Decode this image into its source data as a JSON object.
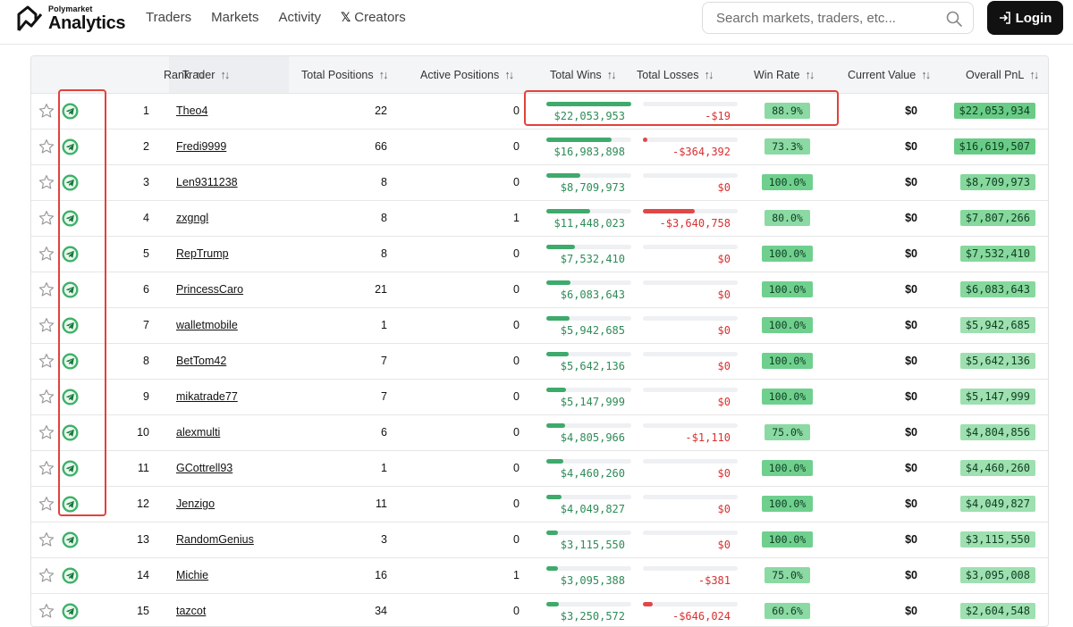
{
  "brand": {
    "small": "Polymarket",
    "big": "Analytics"
  },
  "nav": [
    {
      "label": "Traders"
    },
    {
      "label": "Markets"
    },
    {
      "label": "Activity"
    },
    {
      "label": "Creators",
      "icon": "x-icon"
    }
  ],
  "search": {
    "placeholder": "Search markets, traders, etc..."
  },
  "login": {
    "label": "Login"
  },
  "columns": {
    "rank": "Rank",
    "trader": "Trader",
    "total_positions": "Total Positions",
    "active_positions": "Active Positions",
    "total_wins": "Total Wins",
    "total_losses": "Total Losses",
    "win_rate": "Win Rate",
    "current_value": "Current Value",
    "overall_pnl": "Overall PnL"
  },
  "colors": {
    "gain": "#3eaa6b",
    "loss": "#e04848",
    "highlight": "#e2423b"
  },
  "rows": [
    {
      "rank": "1",
      "trader": "Theo4",
      "total": "22",
      "active": "0",
      "wins": "$22,053,953",
      "wins_frac": 1.0,
      "losses": "-$19",
      "loss_frac": 0.0,
      "rate": "88.9%",
      "value": "$0",
      "pnl": "$22,053,934"
    },
    {
      "rank": "2",
      "trader": "Fredi9999",
      "total": "66",
      "active": "0",
      "wins": "$16,983,898",
      "wins_frac": 0.77,
      "losses": "-$364,392",
      "loss_frac": 0.05,
      "rate": "73.3%",
      "value": "$0",
      "pnl": "$16,619,507"
    },
    {
      "rank": "3",
      "trader": "Len9311238",
      "total": "8",
      "active": "0",
      "wins": "$8,709,973",
      "wins_frac": 0.4,
      "losses": "$0",
      "loss_frac": 0.0,
      "rate": "100.0%",
      "value": "$0",
      "pnl": "$8,709,973"
    },
    {
      "rank": "4",
      "trader": "zxgngl",
      "total": "8",
      "active": "1",
      "wins": "$11,448,023",
      "wins_frac": 0.52,
      "losses": "-$3,640,758",
      "loss_frac": 0.55,
      "rate": "80.0%",
      "value": "$0",
      "pnl": "$7,807,266"
    },
    {
      "rank": "5",
      "trader": "RepTrump",
      "total": "8",
      "active": "0",
      "wins": "$7,532,410",
      "wins_frac": 0.34,
      "losses": "$0",
      "loss_frac": 0.0,
      "rate": "100.0%",
      "value": "$0",
      "pnl": "$7,532,410"
    },
    {
      "rank": "6",
      "trader": "PrincessCaro",
      "total": "21",
      "active": "0",
      "wins": "$6,083,643",
      "wins_frac": 0.28,
      "losses": "$0",
      "loss_frac": 0.0,
      "rate": "100.0%",
      "value": "$0",
      "pnl": "$6,083,643"
    },
    {
      "rank": "7",
      "trader": "walletmobile",
      "total": "1",
      "active": "0",
      "wins": "$5,942,685",
      "wins_frac": 0.27,
      "losses": "$0",
      "loss_frac": 0.0,
      "rate": "100.0%",
      "value": "$0",
      "pnl": "$5,942,685"
    },
    {
      "rank": "8",
      "trader": "BetTom42",
      "total": "7",
      "active": "0",
      "wins": "$5,642,136",
      "wins_frac": 0.26,
      "losses": "$0",
      "loss_frac": 0.0,
      "rate": "100.0%",
      "value": "$0",
      "pnl": "$5,642,136"
    },
    {
      "rank": "9",
      "trader": "mikatrade77",
      "total": "7",
      "active": "0",
      "wins": "$5,147,999",
      "wins_frac": 0.23,
      "losses": "$0",
      "loss_frac": 0.0,
      "rate": "100.0%",
      "value": "$0",
      "pnl": "$5,147,999"
    },
    {
      "rank": "10",
      "trader": "alexmulti",
      "total": "6",
      "active": "0",
      "wins": "$4,805,966",
      "wins_frac": 0.22,
      "losses": "-$1,110",
      "loss_frac": 0.0,
      "rate": "75.0%",
      "value": "$0",
      "pnl": "$4,804,856"
    },
    {
      "rank": "11",
      "trader": "GCottrell93",
      "total": "1",
      "active": "0",
      "wins": "$4,460,260",
      "wins_frac": 0.2,
      "losses": "$0",
      "loss_frac": 0.0,
      "rate": "100.0%",
      "value": "$0",
      "pnl": "$4,460,260"
    },
    {
      "rank": "12",
      "trader": "Jenzigo",
      "total": "11",
      "active": "0",
      "wins": "$4,049,827",
      "wins_frac": 0.18,
      "losses": "$0",
      "loss_frac": 0.0,
      "rate": "100.0%",
      "value": "$0",
      "pnl": "$4,049,827"
    },
    {
      "rank": "13",
      "trader": "RandomGenius",
      "total": "3",
      "active": "0",
      "wins": "$3,115,550",
      "wins_frac": 0.14,
      "losses": "$0",
      "loss_frac": 0.0,
      "rate": "100.0%",
      "value": "$0",
      "pnl": "$3,115,550"
    },
    {
      "rank": "14",
      "trader": "Michie",
      "total": "16",
      "active": "1",
      "wins": "$3,095,388",
      "wins_frac": 0.14,
      "losses": "-$381",
      "loss_frac": 0.0,
      "rate": "75.0%",
      "value": "$0",
      "pnl": "$3,095,008"
    },
    {
      "rank": "15",
      "trader": "tazcot",
      "total": "34",
      "active": "0",
      "wins": "$3,250,572",
      "wins_frac": 0.15,
      "losses": "-$646,024",
      "loss_frac": 0.1,
      "rate": "60.6%",
      "value": "$0",
      "pnl": "$2,604,548"
    }
  ]
}
